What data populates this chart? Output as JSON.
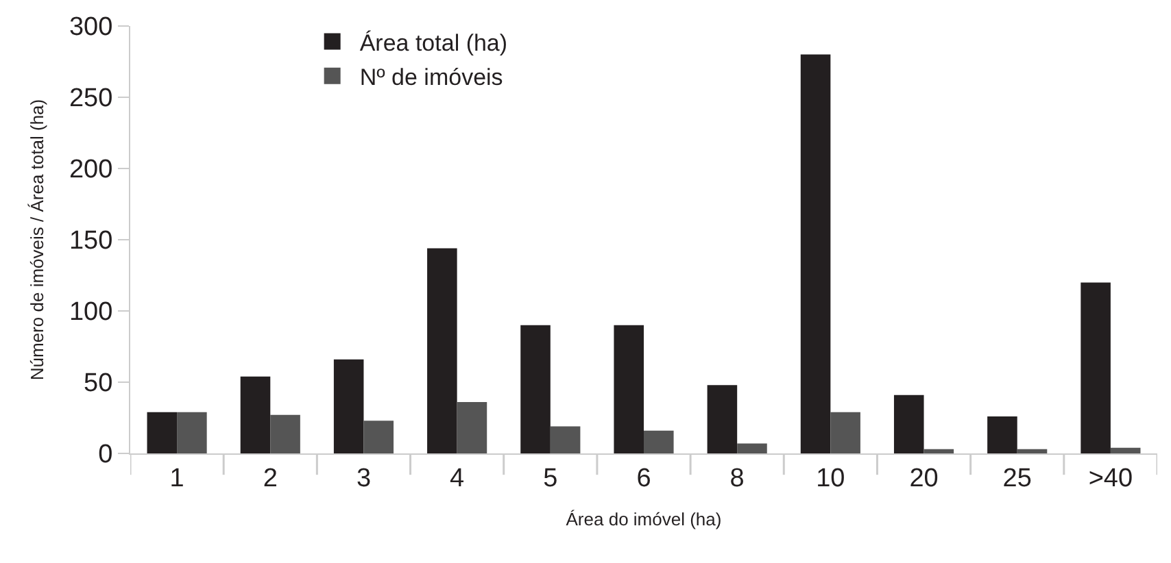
{
  "chart_data": {
    "type": "bar",
    "xlabel": "Área do imóvel (ha)",
    "ylabel": "Número de imóveis / Área total (ha)",
    "categories": [
      "1",
      "2",
      "3",
      "4",
      "5",
      "6",
      "8",
      "10",
      "20",
      "25",
      ">40"
    ],
    "series": [
      {
        "name": "Área total (ha)",
        "color": "#231f20",
        "values": [
          29,
          54,
          66,
          144,
          90,
          90,
          48,
          280,
          41,
          26,
          120
        ]
      },
      {
        "name": "Nº de imóveis",
        "color": "#555555",
        "values": [
          29,
          27,
          23,
          36,
          19,
          16,
          7,
          29,
          3,
          3,
          4
        ]
      }
    ],
    "ylim": [
      0,
      300
    ],
    "yticks": [
      0,
      50,
      100,
      150,
      200,
      250,
      300
    ],
    "legend": "top left"
  }
}
